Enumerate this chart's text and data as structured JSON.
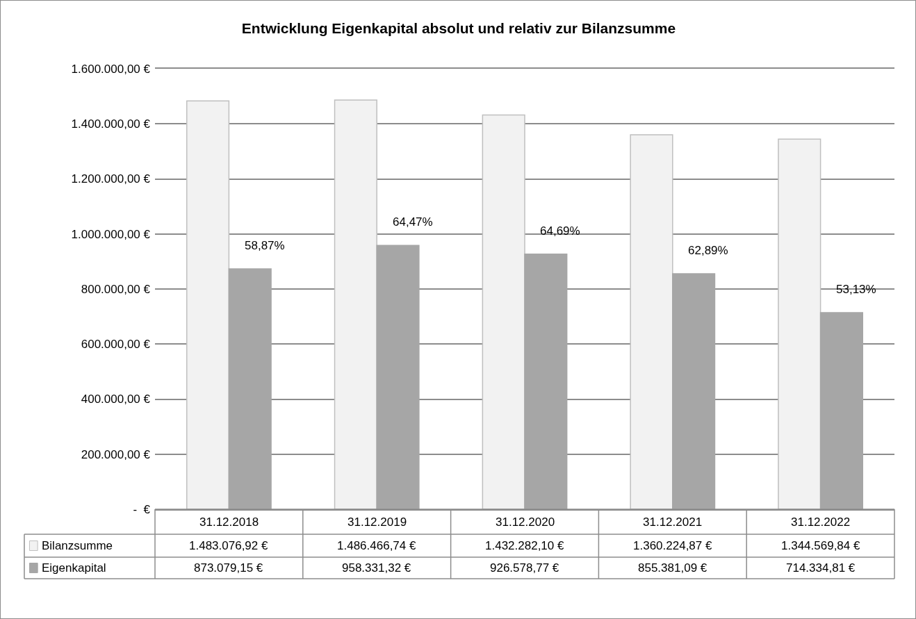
{
  "chart_data": {
    "type": "bar",
    "title": "Entwicklung Eigenkapital absolut und relativ zur Bilanzsumme",
    "categories": [
      "31.12.2018",
      "31.12.2019",
      "31.12.2020",
      "31.12.2021",
      "31.12.2022"
    ],
    "series": [
      {
        "name": "Bilanzsumme",
        "color": "#f2f2f2",
        "values": [
          1483076.92,
          1486466.74,
          1432282.1,
          1360224.87,
          1344569.84
        ],
        "value_labels": [
          "1.483.076,92 €",
          "1.486.466,74 €",
          "1.432.282,10 €",
          "1.360.224,87 €",
          "1.344.569,84 €"
        ]
      },
      {
        "name": "Eigenkapital",
        "color": "#a6a6a6",
        "values": [
          873079.15,
          958331.32,
          926578.77,
          855381.09,
          714334.81
        ],
        "value_labels": [
          "873.079,15 €",
          "958.331,32 €",
          "926.578,77 €",
          "855.381,09 €",
          "714.334,81 €"
        ]
      }
    ],
    "annotations": [
      "58,87%",
      "64,47%",
      "64,69%",
      "62,89%",
      "53,13%"
    ],
    "ylim": [
      0,
      1600000
    ],
    "yticks": [
      {
        "value": 0,
        "label": "-  €"
      },
      {
        "value": 200000,
        "label": "200.000,00 €"
      },
      {
        "value": 400000,
        "label": "400.000,00 €"
      },
      {
        "value": 600000,
        "label": "600.000,00 €"
      },
      {
        "value": 800000,
        "label": "800.000,00 €"
      },
      {
        "value": 1000000,
        "label": "1.000.000,00 €"
      },
      {
        "value": 1200000,
        "label": "1.200.000,00 €"
      },
      {
        "value": 1400000,
        "label": "1.400.000,00 €"
      },
      {
        "value": 1600000,
        "label": "1.600.000,00 €"
      }
    ],
    "grid": "y",
    "legend": "bottom left"
  }
}
